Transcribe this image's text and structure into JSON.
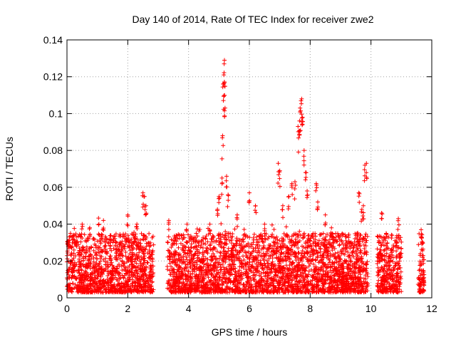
{
  "chart_data": {
    "type": "scatter",
    "title": "Day 140 of 2014, Rate Of TEC Index for receiver zwe2",
    "xlabel": "GPS time / hours",
    "ylabel": "ROTI / TECUs",
    "xlim": [
      0,
      12
    ],
    "ylim": [
      0,
      0.14
    ],
    "x_ticks": [
      "0",
      "2",
      "4",
      "6",
      "8",
      "10",
      "12"
    ],
    "y_ticks": [
      "0",
      "0.02",
      "0.04",
      "0.06",
      "0.08",
      "0.1",
      "0.12",
      "0.14"
    ],
    "grid": true,
    "marker": "+",
    "color": "#ff0000",
    "coverage_hours": [
      [
        0.0,
        2.85
      ],
      [
        3.3,
        9.9
      ],
      [
        10.2,
        11.0
      ],
      [
        11.55,
        11.75
      ]
    ],
    "series": [
      {
        "name": "ROTI",
        "note": "Dense cloud of points mostly between 0.003 and 0.035 TECU; representative peaks listed below",
        "points": [
          [
            0.05,
            0.031
          ],
          [
            0.5,
            0.04
          ],
          [
            0.75,
            0.038
          ],
          [
            1.05,
            0.04
          ],
          [
            1.2,
            0.042
          ],
          [
            2.0,
            0.045
          ],
          [
            2.3,
            0.04
          ],
          [
            2.5,
            0.057
          ],
          [
            2.55,
            0.055
          ],
          [
            2.6,
            0.05
          ],
          [
            3.35,
            0.042
          ],
          [
            3.95,
            0.04
          ],
          [
            4.7,
            0.04
          ],
          [
            4.95,
            0.048
          ],
          [
            5.0,
            0.055
          ],
          [
            5.1,
            0.065
          ],
          [
            5.12,
            0.088
          ],
          [
            5.14,
            0.116
          ],
          [
            5.16,
            0.121
          ],
          [
            5.17,
            0.127
          ],
          [
            5.18,
            0.129
          ],
          [
            5.2,
            0.103
          ],
          [
            5.25,
            0.066
          ],
          [
            5.3,
            0.056
          ],
          [
            5.6,
            0.045
          ],
          [
            6.0,
            0.057
          ],
          [
            6.2,
            0.05
          ],
          [
            6.5,
            0.04
          ],
          [
            6.95,
            0.073
          ],
          [
            7.0,
            0.069
          ],
          [
            7.1,
            0.05
          ],
          [
            7.3,
            0.055
          ],
          [
            7.4,
            0.062
          ],
          [
            7.5,
            0.063
          ],
          [
            7.6,
            0.093
          ],
          [
            7.65,
            0.096
          ],
          [
            7.67,
            0.103
          ],
          [
            7.7,
            0.107
          ],
          [
            7.72,
            0.108
          ],
          [
            7.75,
            0.098
          ],
          [
            7.8,
            0.08
          ],
          [
            7.85,
            0.068
          ],
          [
            7.9,
            0.058
          ],
          [
            8.2,
            0.062
          ],
          [
            8.25,
            0.052
          ],
          [
            8.5,
            0.045
          ],
          [
            8.7,
            0.038
          ],
          [
            9.6,
            0.057
          ],
          [
            9.7,
            0.048
          ],
          [
            9.75,
            0.05
          ],
          [
            9.8,
            0.072
          ],
          [
            9.85,
            0.073
          ],
          [
            10.35,
            0.046
          ],
          [
            10.5,
            0.035
          ],
          [
            10.9,
            0.043
          ],
          [
            11.65,
            0.037
          ],
          [
            11.7,
            0.03
          ]
        ]
      }
    ]
  }
}
